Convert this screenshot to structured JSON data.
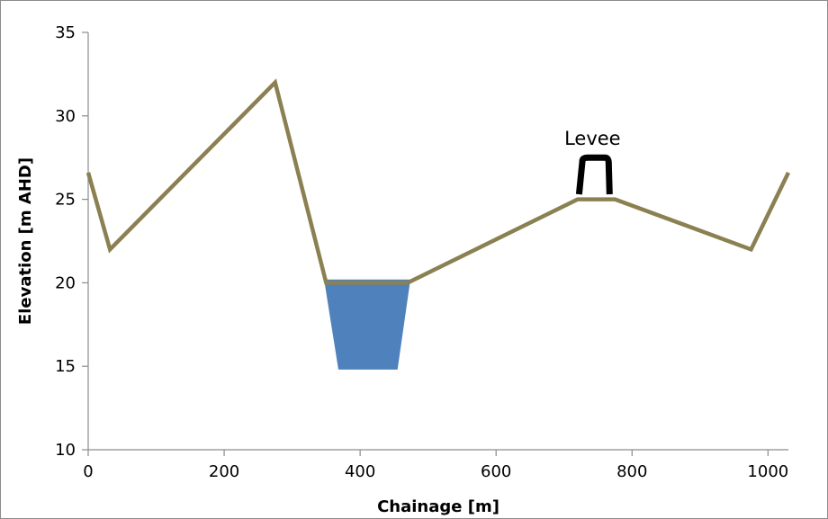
{
  "chart_data": {
    "type": "line",
    "title": "",
    "xlabel": "Chainage  [m]",
    "ylabel": "Elevation  [m AHD]",
    "xlim": [
      0,
      1030
    ],
    "ylim": [
      10,
      35
    ],
    "x_ticks": [
      0,
      200,
      400,
      600,
      800,
      1000
    ],
    "y_ticks": [
      10,
      15,
      20,
      25,
      30,
      35
    ],
    "x_tick_labels": [
      "0",
      "200",
      "400",
      "600",
      "800",
      "1000"
    ],
    "y_tick_labels": [
      "10",
      "15",
      "20",
      "25",
      "30",
      "35"
    ],
    "grid": false,
    "legend": "none",
    "series": [
      {
        "color": "#8b8051",
        "x": [
          0,
          32,
          275,
          350,
          470,
          720,
          775,
          975,
          1030
        ],
        "y": [
          26.6,
          22,
          32,
          20,
          20,
          25,
          25,
          22,
          26.6
        ]
      }
    ],
    "channel": {
      "color": "#4f81bd",
      "polygon": {
        "x": [
          347,
          474,
          455,
          368
        ],
        "y": [
          20.2,
          20.2,
          14.8,
          14.8
        ]
      }
    },
    "levee": {
      "label": "Levee",
      "color": "#000000",
      "x": [
        722,
        727,
        744,
        760,
        767
      ],
      "y": [
        25.3,
        27.5,
        27.5,
        27.5,
        25.3
      ]
    }
  }
}
